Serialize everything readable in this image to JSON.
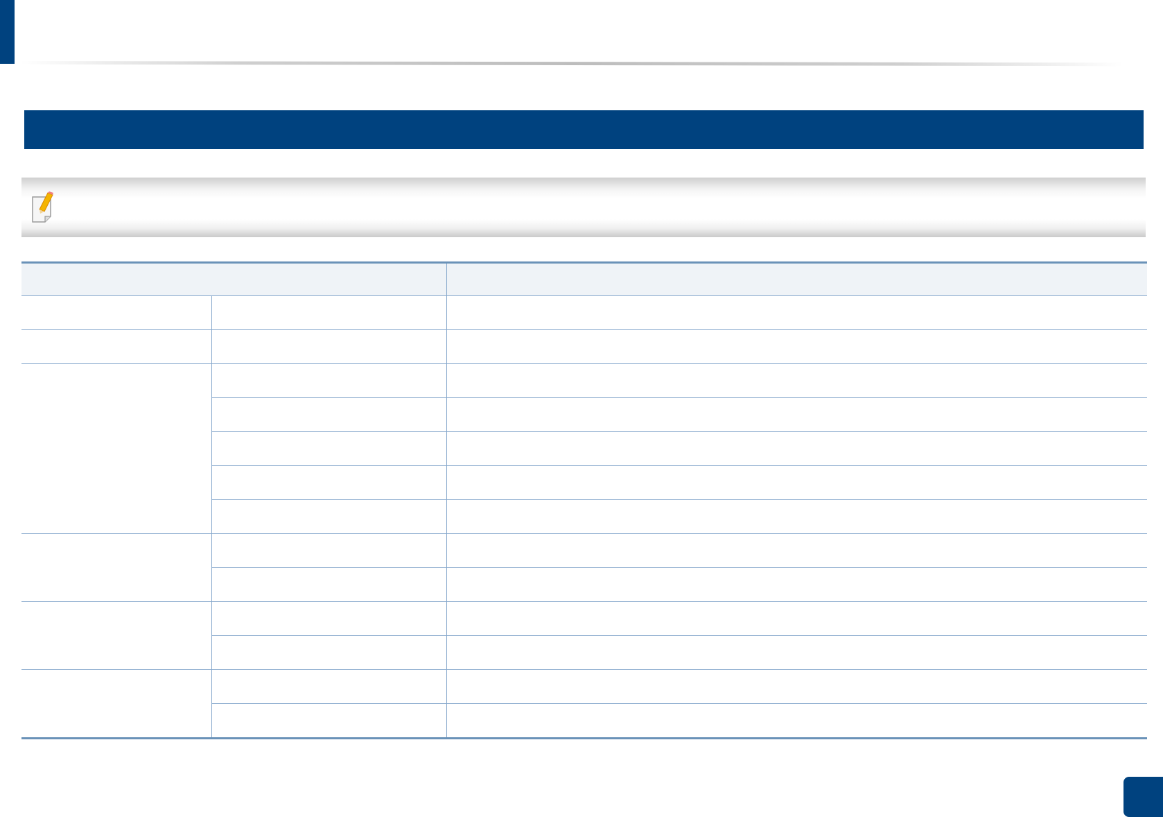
{
  "colors": {
    "brand": "#00427f",
    "table_rule": "#6a92b8",
    "table_header_bg": "#eff3f7"
  },
  "note": {
    "icon": "note-pencil-icon",
    "text": ""
  },
  "chapter": {
    "title": ""
  },
  "table": {
    "headers": [
      "",
      ""
    ],
    "groups": [
      {
        "label": "",
        "rows": [
          {
            "item": "",
            "value": ""
          }
        ]
      },
      {
        "label": "",
        "rows": [
          {
            "item": "",
            "value": ""
          }
        ]
      },
      {
        "label": "",
        "rows": [
          {
            "item": "",
            "value": ""
          },
          {
            "item": "",
            "value": ""
          },
          {
            "item": "",
            "value": ""
          },
          {
            "item": "",
            "value": ""
          },
          {
            "item": "",
            "value": ""
          }
        ]
      },
      {
        "label": "",
        "rows": [
          {
            "item": "",
            "value": ""
          },
          {
            "item": "",
            "value": ""
          }
        ]
      },
      {
        "label": "",
        "rows": [
          {
            "item": "",
            "value": ""
          },
          {
            "item": "",
            "value": ""
          }
        ]
      },
      {
        "label": "",
        "rows": [
          {
            "item": "",
            "value": ""
          },
          {
            "item": "",
            "value": ""
          }
        ]
      }
    ]
  },
  "page_number": ""
}
